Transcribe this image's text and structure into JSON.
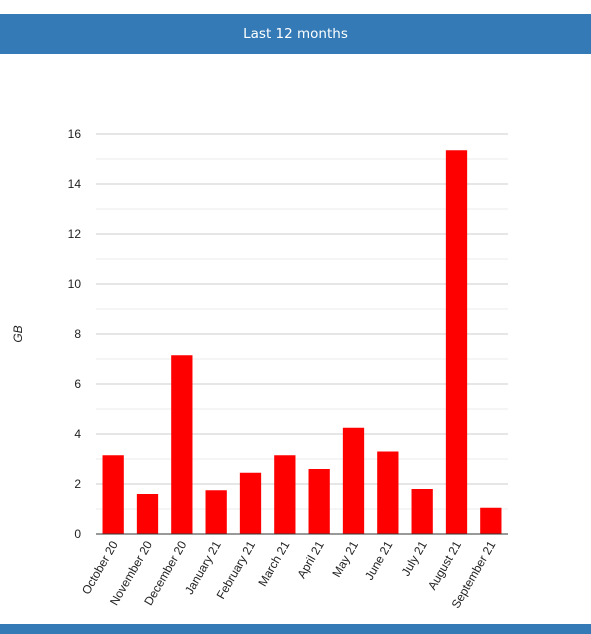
{
  "panel": {
    "title": "Last 12 months"
  },
  "chart_data": {
    "type": "bar",
    "categories": [
      "October 20",
      "November 20",
      "December 20",
      "January 21",
      "February 21",
      "March 21",
      "April 21",
      "May 21",
      "June 21",
      "July 21",
      "August 21",
      "September 21"
    ],
    "values": [
      3.15,
      1.6,
      7.15,
      1.75,
      2.45,
      3.15,
      2.6,
      4.25,
      3.3,
      1.8,
      15.35,
      1.05
    ],
    "title": "",
    "xlabel": "",
    "ylabel": "GB",
    "ylim": [
      0,
      16
    ],
    "yticks": [
      0,
      2,
      4,
      6,
      8,
      10,
      12,
      14,
      16
    ],
    "grid": true,
    "legend": "none",
    "bar_color": "#ff0000"
  }
}
